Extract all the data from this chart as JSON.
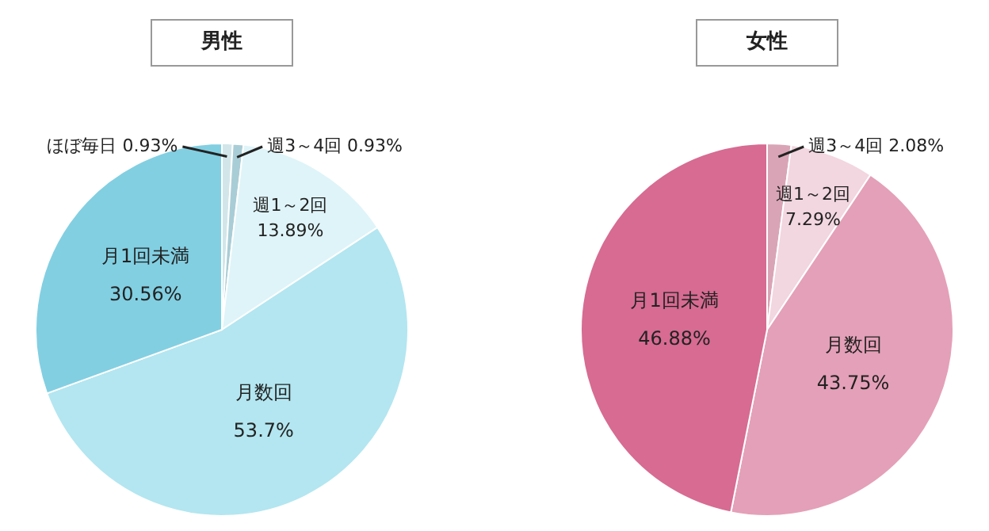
{
  "chart_data": [
    {
      "type": "pie",
      "title": "男性",
      "categories": [
        "ほぼ毎日",
        "週3～4回",
        "週1～2回",
        "月数回",
        "月1回未満"
      ],
      "values": [
        0.93,
        0.93,
        13.89,
        53.7,
        30.56
      ],
      "value_labels": [
        "0.93%",
        "0.93%",
        "13.89%",
        "53.7%",
        "30.56%"
      ],
      "colors": [
        "#d2e6ea",
        "#a9cdd6",
        "#dff4f8",
        "#b3e6f0",
        "#82cfe2"
      ]
    },
    {
      "type": "pie",
      "title": "女性",
      "categories": [
        "週3～4回",
        "週1～2回",
        "月数回",
        "月1回未満"
      ],
      "values": [
        2.08,
        7.29,
        43.75,
        46.88
      ],
      "value_labels": [
        "2.08%",
        "7.29%",
        "43.75%",
        "46.88%"
      ],
      "colors": [
        "#d9a5b6",
        "#f2d6e0",
        "#e4a0b8",
        "#d76b92"
      ]
    }
  ]
}
